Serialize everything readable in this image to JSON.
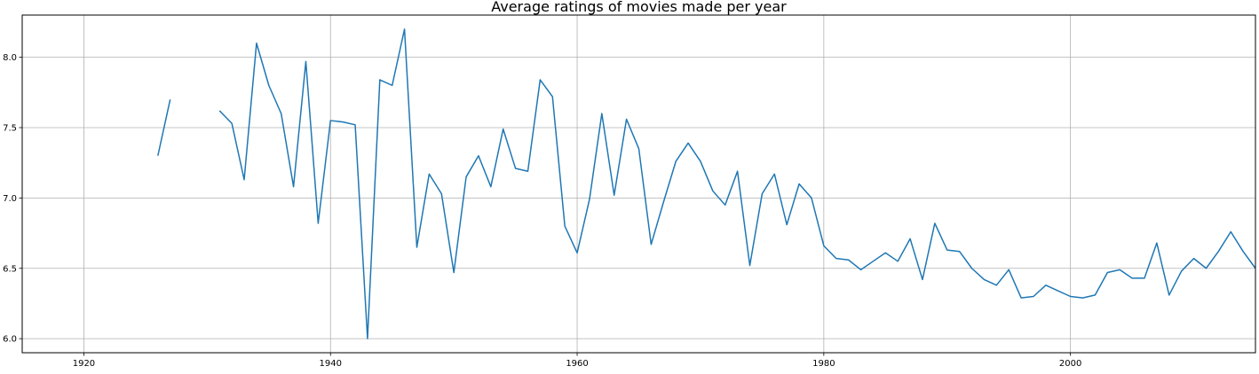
{
  "chart_data": {
    "type": "line",
    "title": "Average ratings of movies made per year",
    "xlabel": "",
    "ylabel": "",
    "xlim": [
      1915,
      2015
    ],
    "ylim": [
      5.9,
      8.3
    ],
    "xticks": [
      1920,
      1940,
      1960,
      1980,
      2000
    ],
    "yticks": [
      6.0,
      6.5,
      7.0,
      7.5,
      8.0
    ],
    "xtick_labels": [
      "1920",
      "1940",
      "1960",
      "1980",
      "2000"
    ],
    "ytick_labels": [
      "6.0",
      "6.5",
      "7.0",
      "7.5",
      "8.0"
    ],
    "grid": true,
    "legend": "none",
    "line_color": "#1f77b4",
    "series": [
      {
        "segments": [
          [
            [
              1926,
              7.3
            ],
            [
              1927,
              7.7
            ]
          ],
          [
            [
              1931,
              7.62
            ],
            [
              1932,
              7.53
            ],
            [
              1933,
              7.13
            ],
            [
              1934,
              8.1
            ],
            [
              1935,
              7.8
            ],
            [
              1936,
              7.6
            ],
            [
              1937,
              7.08
            ],
            [
              1938,
              7.97
            ],
            [
              1939,
              6.82
            ],
            [
              1940,
              7.55
            ],
            [
              1941,
              7.54
            ],
            [
              1942,
              7.52
            ],
            [
              1943,
              6.0
            ],
            [
              1944,
              7.84
            ],
            [
              1945,
              7.8
            ],
            [
              1946,
              8.2
            ],
            [
              1947,
              6.65
            ],
            [
              1948,
              7.17
            ],
            [
              1949,
              7.03
            ],
            [
              1950,
              6.47
            ],
            [
              1951,
              7.15
            ],
            [
              1952,
              7.3
            ],
            [
              1953,
              7.08
            ],
            [
              1954,
              7.49
            ],
            [
              1955,
              7.21
            ],
            [
              1956,
              7.19
            ],
            [
              1957,
              7.84
            ],
            [
              1958,
              7.72
            ],
            [
              1959,
              6.8
            ],
            [
              1960,
              6.61
            ],
            [
              1961,
              6.99
            ],
            [
              1962,
              7.6
            ],
            [
              1963,
              7.02
            ],
            [
              1964,
              7.56
            ],
            [
              1965,
              7.35
            ],
            [
              1966,
              6.67
            ],
            [
              1967,
              6.97
            ],
            [
              1968,
              7.26
            ],
            [
              1969,
              7.39
            ],
            [
              1970,
              7.26
            ],
            [
              1971,
              7.05
            ],
            [
              1972,
              6.95
            ],
            [
              1973,
              7.19
            ],
            [
              1974,
              6.52
            ],
            [
              1975,
              7.03
            ],
            [
              1976,
              7.17
            ],
            [
              1977,
              6.81
            ],
            [
              1978,
              7.1
            ],
            [
              1979,
              7.0
            ],
            [
              1980,
              6.66
            ],
            [
              1981,
              6.57
            ],
            [
              1982,
              6.56
            ],
            [
              1983,
              6.49
            ],
            [
              1984,
              6.55
            ],
            [
              1985,
              6.61
            ],
            [
              1986,
              6.55
            ],
            [
              1987,
              6.71
            ],
            [
              1988,
              6.42
            ],
            [
              1989,
              6.82
            ],
            [
              1990,
              6.63
            ],
            [
              1991,
              6.62
            ],
            [
              1992,
              6.5
            ],
            [
              1993,
              6.42
            ],
            [
              1994,
              6.38
            ],
            [
              1995,
              6.49
            ],
            [
              1996,
              6.29
            ],
            [
              1997,
              6.3
            ],
            [
              1998,
              6.38
            ],
            [
              1999,
              6.34
            ],
            [
              2000,
              6.3
            ],
            [
              2001,
              6.29
            ],
            [
              2002,
              6.31
            ],
            [
              2003,
              6.47
            ],
            [
              2004,
              6.49
            ],
            [
              2005,
              6.43
            ],
            [
              2006,
              6.43
            ],
            [
              2007,
              6.68
            ],
            [
              2008,
              6.31
            ],
            [
              2009,
              6.48
            ],
            [
              2010,
              6.57
            ],
            [
              2011,
              6.5
            ],
            [
              2012,
              6.62
            ],
            [
              2013,
              6.76
            ],
            [
              2014,
              6.62
            ],
            [
              2015,
              6.5
            ]
          ]
        ]
      }
    ]
  }
}
